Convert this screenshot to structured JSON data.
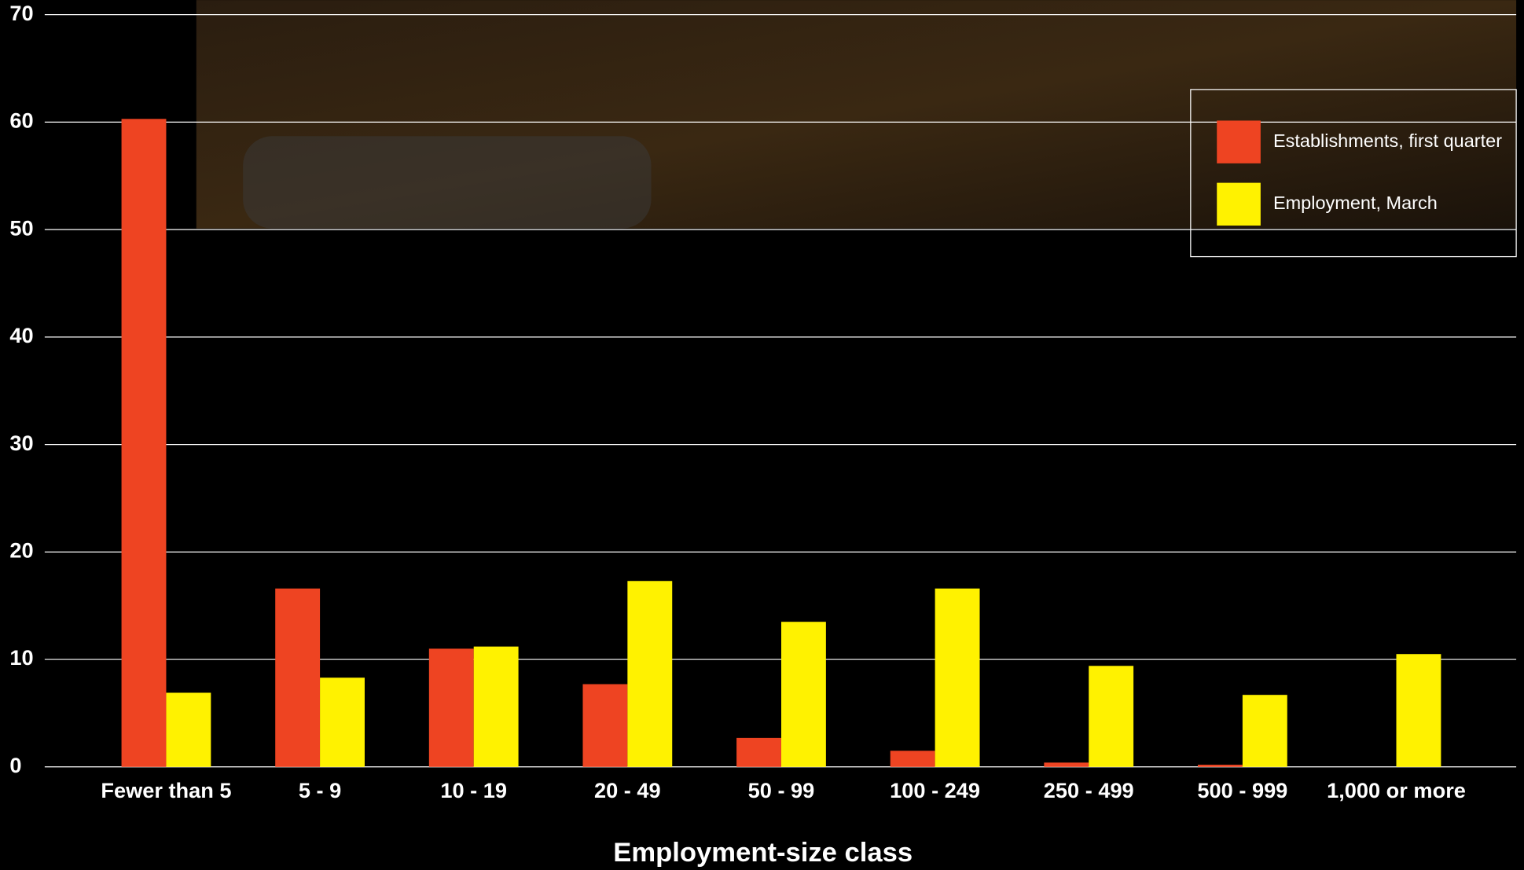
{
  "chart_data": {
    "type": "bar",
    "x_label": "Employment-size class",
    "categories": [
      "Fewer than 5",
      "5 - 9",
      "10 - 19",
      "20 - 49",
      "50 - 99",
      "100 - 249",
      "250 - 499",
      "500 - 999",
      "1,000 or more"
    ],
    "series": [
      {
        "name": "Establishments, first quarter",
        "color": "#ee4422",
        "values": [
          60.3,
          16.6,
          11.0,
          7.7,
          2.7,
          1.5,
          0.4,
          0.2,
          0
        ]
      },
      {
        "name": "Employment, March",
        "color": "#fff200",
        "values": [
          6.9,
          8.3,
          11.2,
          17.3,
          13.5,
          16.6,
          9.4,
          6.7,
          10.5
        ]
      }
    ],
    "ylim": [
      0,
      70
    ],
    "yticks": [
      0,
      10,
      20,
      30,
      40,
      50,
      60,
      70
    ],
    "grid": true,
    "legend": "upper-right"
  }
}
